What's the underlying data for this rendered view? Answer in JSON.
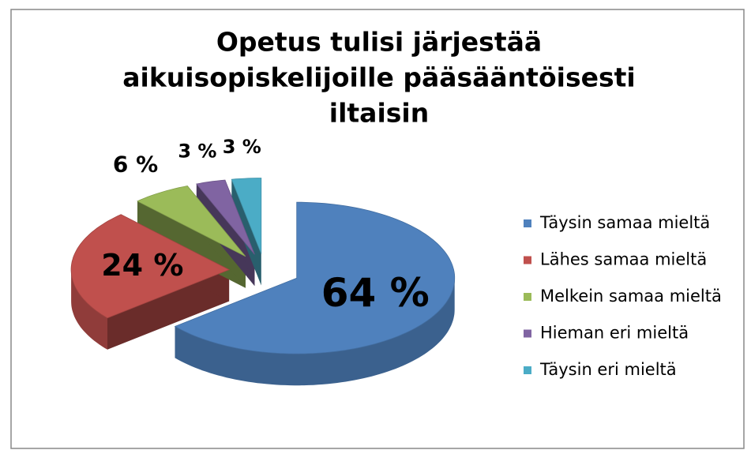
{
  "chart_data": {
    "type": "pie3d",
    "title": [
      "Opetus tulisi järjestää",
      "aikuisopiskelijoille pääsääntöisesti",
      "iltaisin"
    ],
    "categories": [
      "Täysin samaa mieltä",
      "Lähes samaa mieltä",
      "Melkein samaa mieltä",
      "Hieman eri mieltä",
      "Täysin eri mieltä"
    ],
    "values": [
      64,
      24,
      6,
      3,
      3
    ],
    "value_labels": [
      "64 %",
      "24 %",
      "6 %",
      "3 %",
      "3 %"
    ],
    "colors": [
      "#4f81bd",
      "#c0504d",
      "#9bbb59",
      "#8064a2",
      "#4bacc6"
    ],
    "legend": "right"
  }
}
